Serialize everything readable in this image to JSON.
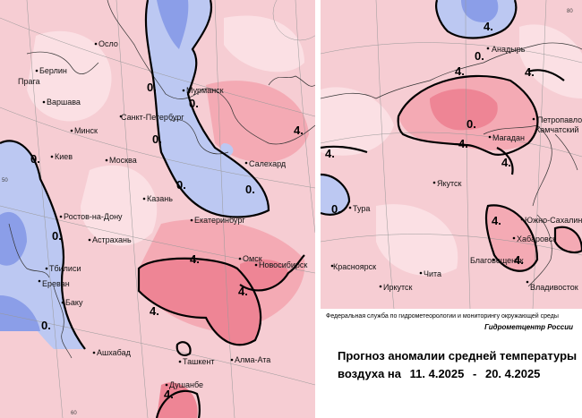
{
  "colors": {
    "base_pink": "#f6cdd3",
    "light_pink": "#fbe0e4",
    "mid_pink": "#f4aab4",
    "deep_pink": "#ee8595",
    "light_blue": "#bcc8f2",
    "mid_blue": "#8b9ee8",
    "contour": "#000000",
    "coast": "#333333"
  },
  "cities_left": [
    "Осло",
    "Берлин",
    "Прага",
    "Варшава",
    "Минск",
    "Киев",
    "Москва",
    "Санкт-Петербург",
    "Мурманск",
    "Салехард",
    "Казань",
    "Екатеринбург",
    "Ростов-на-Дону",
    "Астрахань",
    "Тбилиси",
    "Ереван",
    "Баку",
    "Ашхабад",
    "Ташкент",
    "Алма-Ата",
    "Душанбе",
    "Омск",
    "Новосибирск"
  ],
  "cities_right": [
    "Анадырь",
    "Магадан",
    "Петропавловск",
    "Камчатский",
    "Якутск",
    "Тура",
    "Южно-Сахалинск",
    "Хабаровск",
    "Благовещенск",
    "Красноярск",
    "Иркутск",
    "Чита",
    "Владивосток"
  ],
  "contour_labels_left": [
    "0.",
    "0.",
    "0.",
    "0.",
    "0.",
    "0.",
    "0.",
    "0.",
    "4.",
    "4.",
    "4.",
    "4.",
    "4."
  ],
  "contour_labels_right": [
    "4.",
    "0.",
    "4.",
    "0.",
    "4.",
    "4.",
    "4.",
    "4.",
    "0.",
    "4.",
    "4."
  ],
  "grid_labels": [
    "50",
    "60",
    "80"
  ],
  "agency": "Федеральная служба по гидрометеорологии и мониторингу окружающей среды",
  "center": "Гидрометцентр России",
  "title_line1": "Прогноз аномалии средней температуры",
  "title_prefix": "воздуха на",
  "date_from": "11. 4.2025",
  "date_sep": "-",
  "date_to": "20. 4.2025"
}
